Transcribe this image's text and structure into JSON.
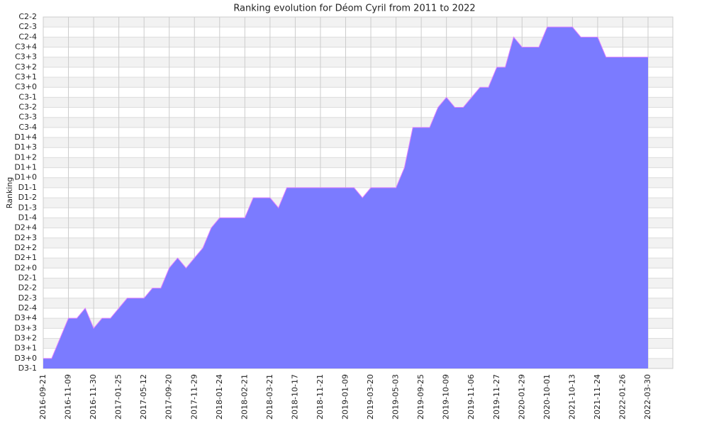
{
  "chart_data": {
    "type": "area",
    "title": "Ranking evolution for Déom Cyril from 2011 to 2022",
    "ylabel": "Ranking",
    "categories": [
      "2016-09-21",
      null,
      null,
      "2016-11-09",
      null,
      null,
      "2016-11-30",
      null,
      null,
      "2017-01-25",
      null,
      null,
      "2017-05-12",
      null,
      null,
      "2017-09-20",
      null,
      null,
      "2017-11-29",
      null,
      null,
      "2018-01-24",
      null,
      null,
      "2018-02-21",
      null,
      null,
      "2018-03-21",
      null,
      null,
      "2018-10-17",
      null,
      null,
      "2018-11-21",
      null,
      null,
      "2019-01-09",
      null,
      null,
      "2019-03-20",
      null,
      null,
      "2019-05-03",
      null,
      null,
      "2019-09-25",
      null,
      null,
      "2019-10-09",
      null,
      null,
      "2019-11-06",
      null,
      null,
      "2019-11-27",
      null,
      null,
      "2020-01-29",
      null,
      null,
      "2020-10-01",
      null,
      null,
      "2021-10-13",
      null,
      null,
      "2021-11-24",
      null,
      null,
      "2022-01-26",
      null,
      null,
      "2022-03-30"
    ],
    "series": [
      {
        "name": "Ranking",
        "color": "#7b7bff",
        "line_color": "#e07fff",
        "values": [
          1,
          1,
          3,
          5,
          5,
          6,
          4,
          5,
          5,
          6,
          7,
          7,
          7,
          8,
          8,
          10,
          11,
          10,
          11,
          12,
          14,
          15,
          15,
          15,
          15,
          17,
          17,
          17,
          16,
          18,
          18,
          18,
          18,
          18,
          18,
          18,
          18,
          18,
          17,
          18,
          18,
          18,
          18,
          20,
          24,
          24,
          24,
          26,
          27,
          26,
          26,
          27,
          28,
          28,
          30,
          30,
          33,
          32,
          32,
          32,
          34,
          34,
          34,
          34,
          33,
          33,
          33,
          31,
          31,
          31,
          31,
          31,
          31
        ]
      }
    ],
    "ylim": [
      0,
      35
    ],
    "yticks": [
      {
        "value": 0,
        "label": "D3-1"
      },
      {
        "value": 1,
        "label": "D3+0"
      },
      {
        "value": 2,
        "label": "D3+1"
      },
      {
        "value": 3,
        "label": "D3+2"
      },
      {
        "value": 4,
        "label": "D3+3"
      },
      {
        "value": 5,
        "label": "D3+4"
      },
      {
        "value": 6,
        "label": "D2-4"
      },
      {
        "value": 7,
        "label": "D2-3"
      },
      {
        "value": 8,
        "label": "D2-2"
      },
      {
        "value": 9,
        "label": "D2-1"
      },
      {
        "value": 10,
        "label": "D2+0"
      },
      {
        "value": 11,
        "label": "D2+1"
      },
      {
        "value": 12,
        "label": "D2+2"
      },
      {
        "value": 13,
        "label": "D2+3"
      },
      {
        "value": 14,
        "label": "D2+4"
      },
      {
        "value": 15,
        "label": "D1-4"
      },
      {
        "value": 16,
        "label": "D1-3"
      },
      {
        "value": 17,
        "label": "D1-2"
      },
      {
        "value": 18,
        "label": "D1-1"
      },
      {
        "value": 19,
        "label": "D1+0"
      },
      {
        "value": 20,
        "label": "D1+1"
      },
      {
        "value": 21,
        "label": "D1+2"
      },
      {
        "value": 22,
        "label": "D1+3"
      },
      {
        "value": 23,
        "label": "D1+4"
      },
      {
        "value": 24,
        "label": "C3-4"
      },
      {
        "value": 25,
        "label": "C3-3"
      },
      {
        "value": 26,
        "label": "C3-2"
      },
      {
        "value": 27,
        "label": "C3-1"
      },
      {
        "value": 28,
        "label": "C3+0"
      },
      {
        "value": 29,
        "label": "C3+1"
      },
      {
        "value": 30,
        "label": "C3+2"
      },
      {
        "value": 31,
        "label": "C3+3"
      },
      {
        "value": 32,
        "label": "C3+4"
      },
      {
        "value": 33,
        "label": "C2-4"
      },
      {
        "value": 34,
        "label": "C2-3"
      },
      {
        "value": 35,
        "label": "C2-2"
      }
    ],
    "grid": true
  }
}
